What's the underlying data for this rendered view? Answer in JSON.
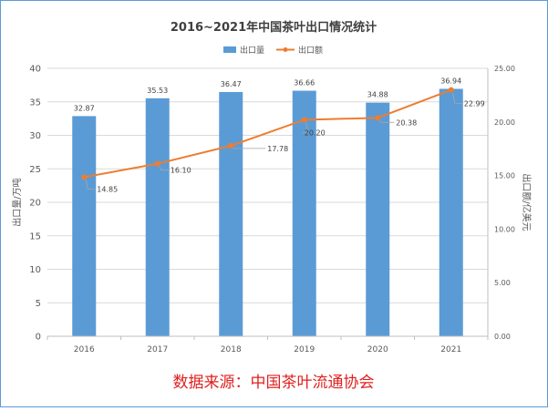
{
  "chart_data": {
    "type": "bar",
    "title": "2016~2021年中国茶叶出口情况统计",
    "categories": [
      "2016",
      "2017",
      "2018",
      "2019",
      "2020",
      "2021"
    ],
    "series": [
      {
        "name": "出口量",
        "type": "bar",
        "axis": "left",
        "values": [
          32.87,
          35.53,
          36.47,
          36.66,
          34.88,
          36.94
        ],
        "labels": [
          "32.87",
          "35.53",
          "36.47",
          "36.66",
          "34.88",
          "36.94"
        ],
        "color": "#5B9BD5"
      },
      {
        "name": "出口额",
        "type": "line",
        "axis": "right",
        "values": [
          14.85,
          16.1,
          17.78,
          20.2,
          20.38,
          22.99
        ],
        "labels": [
          "14.85",
          "16.10",
          "17.78",
          "20.20",
          "20.38",
          "22.99"
        ],
        "color": "#ED7D31"
      }
    ],
    "y_left": {
      "label": "出口量/万吨",
      "min": 0,
      "max": 40,
      "ticks": [
        0,
        5,
        10,
        15,
        20,
        25,
        30,
        35,
        40
      ],
      "tick_labels": [
        "0",
        "5",
        "10",
        "15",
        "20",
        "25",
        "30",
        "35",
        "40"
      ]
    },
    "y_right": {
      "label": "出口额/亿美元",
      "min": 0,
      "max": 25,
      "ticks": [
        0,
        5,
        10,
        15,
        20,
        25
      ],
      "tick_labels": [
        "0.00",
        "5.00",
        "10.00",
        "15.00",
        "20.00",
        "25.00"
      ]
    },
    "grid": true,
    "legend": "top-center"
  },
  "source_note": "数据来源：中国茶叶流通协会",
  "colors": {
    "frame": "#5B9BD5",
    "grid": "#D9D9D9",
    "axis_text": "#595959",
    "title": "#404040",
    "source": "#E02020",
    "leader": "#A6A6A6"
  }
}
